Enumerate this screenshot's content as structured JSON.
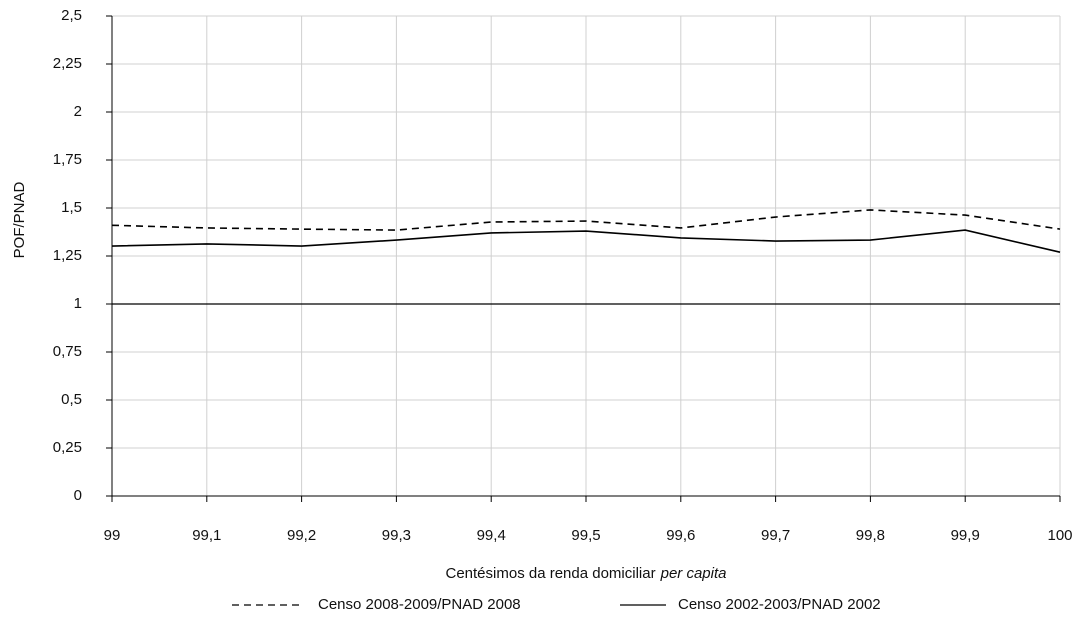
{
  "chart_data": {
    "type": "line",
    "x_label": "Centésimos da renda domiciliar",
    "x_label_italic": "per capita",
    "y_label": "POF/PNAD",
    "x": [
      99,
      99.1,
      99.2,
      99.3,
      99.4,
      99.5,
      99.6,
      99.7,
      99.8,
      99.9,
      100
    ],
    "series": [
      {
        "name": "Censo 2008-2009/PNAD 2008",
        "color": "#000000",
        "dash": "dashed",
        "values": [
          1.41,
          1.396,
          1.39,
          1.385,
          1.427,
          1.432,
          1.396,
          1.453,
          1.49,
          1.463,
          1.39
        ]
      },
      {
        "name": "Censo 2002-2003/PNAD 2002",
        "color": "#000000",
        "dash": "solid",
        "values": [
          1.302,
          1.313,
          1.302,
          1.333,
          1.37,
          1.38,
          1.344,
          1.328,
          1.333,
          1.385,
          1.27
        ]
      }
    ],
    "xlim": [
      99,
      100
    ],
    "xticks": [
      99,
      {
        "value": 99.1,
        "label": "99,1"
      },
      {
        "value": 99.2,
        "label": "99,2"
      },
      {
        "value": 99.3,
        "label": "99,3"
      },
      {
        "value": 99.4,
        "label": "99,4"
      },
      {
        "value": 99.5,
        "label": "99,5"
      },
      {
        "value": 99.6,
        "label": "99,6"
      },
      {
        "value": 99.7,
        "label": "99,7"
      },
      {
        "value": 99.8,
        "label": "99,8"
      },
      {
        "value": 99.9,
        "label": "99,9"
      },
      100
    ],
    "ylim": [
      0,
      2.5
    ],
    "yticks": [
      0,
      {
        "value": 0.25,
        "label": "0,25"
      },
      {
        "value": 0.5,
        "label": "0,5"
      },
      {
        "value": 0.75,
        "label": "0,75"
      },
      1,
      {
        "value": 1.25,
        "label": "1,25"
      },
      {
        "value": 1.5,
        "label": "1,5"
      },
      {
        "value": 1.75,
        "label": "1,75"
      },
      2,
      {
        "value": 2.25,
        "label": "2,25"
      },
      {
        "value": 2.5,
        "label": "2,5"
      }
    ],
    "reference_line": 1,
    "grid": true,
    "legend": "bottom"
  }
}
